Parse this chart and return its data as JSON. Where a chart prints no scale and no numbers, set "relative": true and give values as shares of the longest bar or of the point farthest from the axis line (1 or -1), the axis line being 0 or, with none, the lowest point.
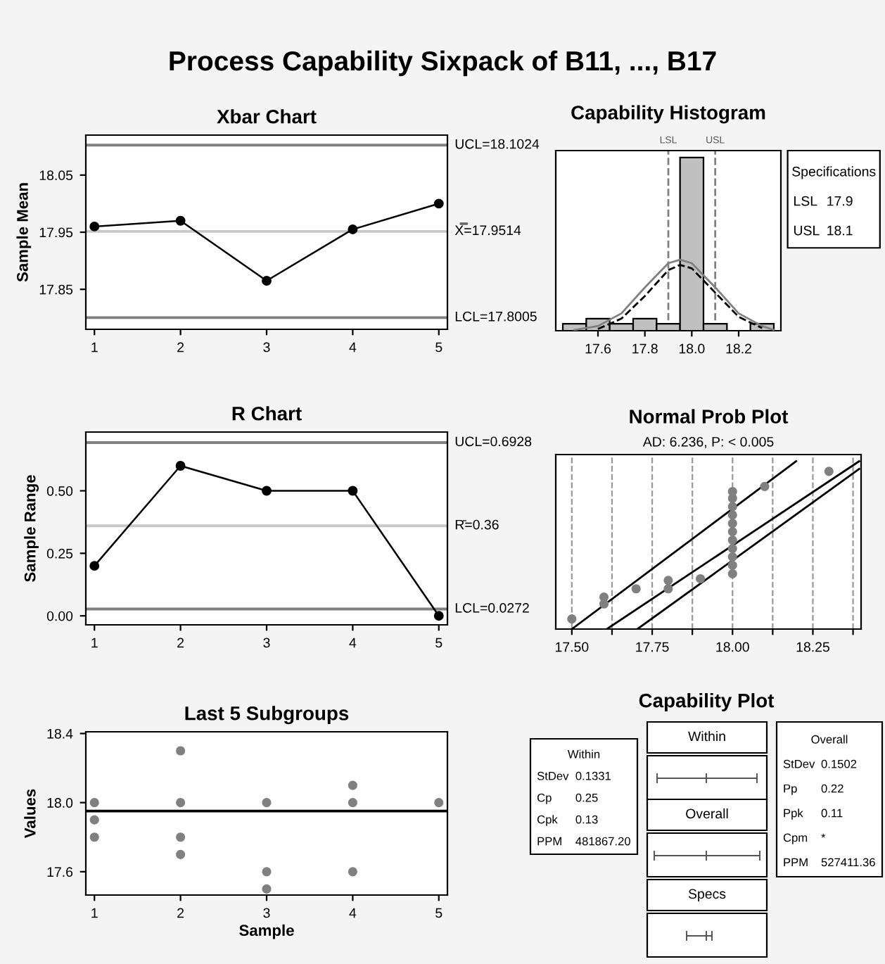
{
  "chart_data": [
    {
      "type": "other",
      "title": "Process Capability Sixpack of B11, ..., B17"
    },
    {
      "type": "line",
      "title": "Xbar Chart",
      "ylabel": "Sample Mean",
      "categories": [
        "1",
        "2",
        "3",
        "4",
        "5"
      ],
      "marker": "circle",
      "series": [
        {
          "color": "#000000",
          "values": [
            17.96,
            17.97,
            17.865,
            17.955,
            18.0
          ]
        }
      ],
      "ylim": [
        17.78,
        18.12
      ],
      "yticks": [
        17.85,
        17.95,
        18.05
      ],
      "ref_lines": [
        {
          "axis": "y",
          "value": 18.1024,
          "label": "UCL=18.1024",
          "color": "#808080"
        },
        {
          "axis": "y",
          "value": 17.9514,
          "label": "X̿=17.9514",
          "color": "#c8c8c8"
        },
        {
          "axis": "y",
          "value": 17.8005,
          "label": "LCL=17.8005",
          "color": "#808080"
        }
      ]
    },
    {
      "type": "histogram",
      "title": "Capability Histogram",
      "relative": true,
      "color": "#c0c0c0",
      "bins": [
        17.45,
        17.55,
        17.65,
        17.75,
        17.85,
        17.95,
        18.05,
        18.15,
        18.25,
        18.35
      ],
      "values": [
        0.04,
        0.07,
        0.04,
        0.07,
        0.04,
        1,
        0.04,
        0,
        0.04
      ],
      "series": [
        {
          "type": "line",
          "color": "#808080",
          "line_style": "solid",
          "x": [
            17.5,
            17.6,
            17.7,
            17.8,
            17.9,
            17.95,
            18.0,
            18.1,
            18.2,
            18.3,
            18.35
          ],
          "values": [
            0.005,
            0.027,
            0.1,
            0.25,
            0.39,
            0.41,
            0.39,
            0.25,
            0.1,
            0.027,
            0.005
          ]
        },
        {
          "type": "line",
          "color": "#000000",
          "line_style": "dashed",
          "x": [
            17.6,
            17.7,
            17.8,
            17.9,
            17.95,
            18.0,
            18.1,
            18.2,
            18.3
          ],
          "values": [
            0.01,
            0.07,
            0.2,
            0.35,
            0.38,
            0.36,
            0.22,
            0.08,
            0.015
          ]
        }
      ],
      "xlim": [
        17.42,
        18.38
      ],
      "xticks": [
        17.6,
        17.8,
        {
          "value": 18.0,
          "label": "18.0"
        },
        18.2
      ],
      "ref_lines": [
        {
          "axis": "x",
          "value": 17.9,
          "label": "LSL",
          "color": "#808080",
          "line_style": "dashed"
        },
        {
          "axis": "x",
          "value": 18.1,
          "label": "USL",
          "color": "#808080",
          "line_style": "dashed"
        }
      ],
      "annotations": [
        "Specifications",
        "LSL 17.9",
        "USL 18.1"
      ]
    },
    {
      "type": "line",
      "title": "R Chart",
      "ylabel": "Sample Range",
      "categories": [
        "1",
        "2",
        "3",
        "4",
        "5"
      ],
      "marker": "circle",
      "series": [
        {
          "color": "#000000",
          "values": [
            0.2,
            0.6,
            0.5,
            0.5,
            0.0
          ]
        }
      ],
      "ylim": [
        -0.036,
        0.735
      ],
      "yticks": [
        {
          "value": 0,
          "label": "0.00"
        },
        0.25,
        {
          "value": 0.5,
          "label": "0.50"
        }
      ],
      "ref_lines": [
        {
          "axis": "y",
          "value": 0.6928,
          "label": "UCL=0.6928",
          "color": "#808080"
        },
        {
          "axis": "y",
          "value": 0.36,
          "label": "R̄=0.36",
          "color": "#c8c8c8"
        },
        {
          "axis": "y",
          "value": 0.0272,
          "label": "LCL=0.0272",
          "color": "#808080"
        }
      ]
    },
    {
      "type": "scatter",
      "title": "Normal Prob Plot",
      "subtitle": "AD: 6.236, P: < 0.005",
      "relative": true,
      "marker": "circle",
      "grid": "x",
      "series": [
        {
          "color": "#808080",
          "x": [
            17.5,
            17.6,
            17.6,
            17.7,
            17.8,
            17.8,
            17.9,
            18.0,
            18.0,
            18.0,
            18.0,
            18.0,
            18.0,
            18.0,
            18.0,
            18.0,
            18.0,
            18.0,
            18.1,
            18.3
          ],
          "values": [
            0.06,
            0.15,
            0.19,
            0.24,
            0.24,
            0.29,
            0.3,
            0.33,
            0.38,
            0.43,
            0.48,
            0.53,
            0.58,
            0.63,
            0.68,
            0.73,
            0.78,
            0.82,
            0.85,
            0.94
          ]
        },
        {
          "type": "line",
          "marker": "none",
          "color": "#000000",
          "x": [
            17.5,
            18.198
          ],
          "values": [
            0,
            1
          ]
        },
        {
          "type": "line",
          "marker": "none",
          "color": "#000000",
          "x": [
            17.609,
            18.394
          ],
          "values": [
            0,
            1
          ]
        },
        {
          "type": "line",
          "marker": "none",
          "color": "#000000",
          "x": [
            17.704,
            18.394
          ],
          "values": [
            0,
            0.954
          ]
        }
      ],
      "xlim": [
        17.45,
        18.4
      ],
      "xticks": [
        {
          "value": 17.5,
          "label": "17.50"
        },
        {
          "value": 17.625,
          "label": null
        },
        17.75,
        {
          "value": 17.875,
          "label": null
        },
        {
          "value": 18.0,
          "label": "18.00"
        },
        {
          "value": 18.125,
          "label": null
        },
        18.25,
        {
          "value": 18.375,
          "label": null
        }
      ]
    },
    {
      "type": "scatter",
      "title": "Last 5 Subgroups",
      "xlabel": "Sample",
      "ylabel": "Values",
      "categories": [
        "1",
        "2",
        "3",
        "4",
        "5"
      ],
      "marker": "circle",
      "series": [
        {
          "color": "#808080",
          "x": [
            "1",
            "1",
            "1",
            "2",
            "2",
            "2",
            "2",
            "3",
            "3",
            "3",
            "4",
            "4",
            "4",
            "5"
          ],
          "values": [
            18.0,
            17.9,
            17.8,
            18.3,
            18.0,
            17.8,
            17.7,
            18.0,
            17.6,
            17.5,
            18.1,
            18.0,
            17.6,
            18.0
          ]
        }
      ],
      "ylim": [
        17.465,
        18.41
      ],
      "yticks": [
        17.6,
        {
          "value": 18.0,
          "label": "18.0"
        },
        18.4
      ],
      "ref_lines": [
        {
          "axis": "y",
          "value": 17.9514,
          "color": "#000000"
        }
      ]
    },
    {
      "type": "other",
      "title": "Capability Plot",
      "annotations": [
        "Within",
        "StDev 0.1331",
        "Cp 0.25",
        "Cpk 0.13",
        "PPM 481867.20",
        "Within",
        "Overall",
        "Specs",
        "Overall",
        "StDev 0.1502",
        "Pp 0.22",
        "Ppk 0.11",
        "Cpm *",
        "PPM 527411.36"
      ]
    }
  ]
}
